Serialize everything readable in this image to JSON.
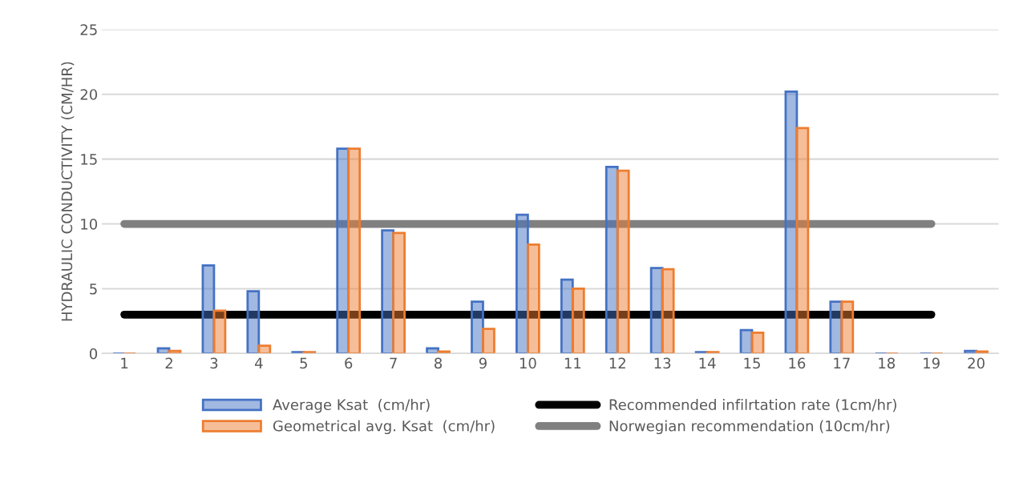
{
  "chart_data": {
    "type": "bar",
    "ylabel": "HYDRAULIC CONDUCTIVITY (CM/HR)",
    "categories": [
      "1",
      "2",
      "3",
      "4",
      "5",
      "6",
      "7",
      "8",
      "9",
      "10",
      "11",
      "12",
      "13",
      "14",
      "15",
      "16",
      "17",
      "18",
      "19",
      "20"
    ],
    "series": [
      {
        "name": "Average Ksat  (cm/hr)",
        "color": "#4472c4",
        "values": [
          0,
          0.4,
          6.8,
          4.8,
          0.1,
          15.8,
          9.5,
          0.4,
          4.0,
          10.7,
          5.7,
          14.4,
          6.6,
          0.1,
          1.8,
          20.2,
          4.0,
          0,
          0,
          0.2
        ]
      },
      {
        "name": "Geometrical avg. Ksat  (cm/hr)",
        "color": "#ed7d31",
        "values": [
          0,
          0.2,
          3.3,
          0.6,
          0.1,
          15.8,
          9.3,
          0.15,
          1.9,
          8.4,
          5.0,
          14.1,
          6.5,
          0.1,
          1.6,
          17.4,
          4.0,
          0,
          0,
          0.15
        ]
      },
      {
        "name": "Recommended infilrtation rate (1cm/hr)",
        "type": "line",
        "color": "#000000",
        "values": [
          3,
          3,
          3,
          3,
          3,
          3,
          3,
          3,
          3,
          3,
          3,
          3,
          3,
          3,
          3,
          3,
          3,
          3,
          3,
          null
        ]
      },
      {
        "name": "Norwegian recommendation (10cm/hr)",
        "type": "line",
        "color": "#808080",
        "values": [
          10,
          10,
          10,
          10,
          10,
          10,
          10,
          10,
          10,
          10,
          10,
          10,
          10,
          10,
          10,
          10,
          10,
          10,
          10,
          null
        ]
      }
    ],
    "ylim": [
      0,
      25
    ],
    "yticks": [
      0,
      5,
      10,
      15,
      20,
      25
    ],
    "grid": "y",
    "legend": "bottom"
  }
}
